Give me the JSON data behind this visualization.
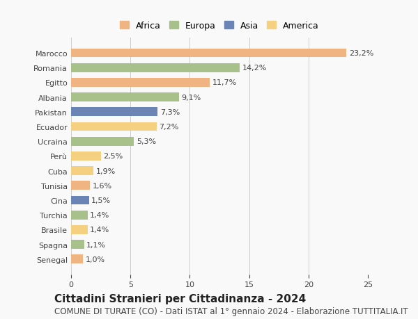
{
  "countries": [
    "Marocco",
    "Romania",
    "Egitto",
    "Albania",
    "Pakistan",
    "Ecuador",
    "Ucraina",
    "Perù",
    "Cuba",
    "Tunisia",
    "Cina",
    "Turchia",
    "Brasile",
    "Spagna",
    "Senegal"
  ],
  "values": [
    23.2,
    14.2,
    11.7,
    9.1,
    7.3,
    7.2,
    5.3,
    2.5,
    1.9,
    1.6,
    1.5,
    1.4,
    1.4,
    1.1,
    1.0
  ],
  "labels": [
    "23,2%",
    "14,2%",
    "11,7%",
    "9,1%",
    "7,3%",
    "7,2%",
    "5,3%",
    "2,5%",
    "1,9%",
    "1,6%",
    "1,5%",
    "1,4%",
    "1,4%",
    "1,1%",
    "1,0%"
  ],
  "continents": [
    "Africa",
    "Europa",
    "Africa",
    "Europa",
    "Asia",
    "America",
    "Europa",
    "America",
    "America",
    "Africa",
    "Asia",
    "Europa",
    "America",
    "Europa",
    "Africa"
  ],
  "continent_colors": {
    "Africa": "#F0B482",
    "Europa": "#A8C08A",
    "Asia": "#6A85B5",
    "America": "#F5D080"
  },
  "legend_order": [
    "Africa",
    "Europa",
    "Asia",
    "America"
  ],
  "xlim": [
    0,
    25
  ],
  "xticks": [
    0,
    5,
    10,
    15,
    20,
    25
  ],
  "title": "Cittadini Stranieri per Cittadinanza - 2024",
  "subtitle": "COMUNE DI TURATE (CO) - Dati ISTAT al 1° gennaio 2024 - Elaborazione TUTTITALIA.IT",
  "background_color": "#f9f9f9",
  "bar_height": 0.6,
  "title_fontsize": 11,
  "subtitle_fontsize": 8.5,
  "label_fontsize": 8,
  "tick_fontsize": 8,
  "legend_fontsize": 9
}
